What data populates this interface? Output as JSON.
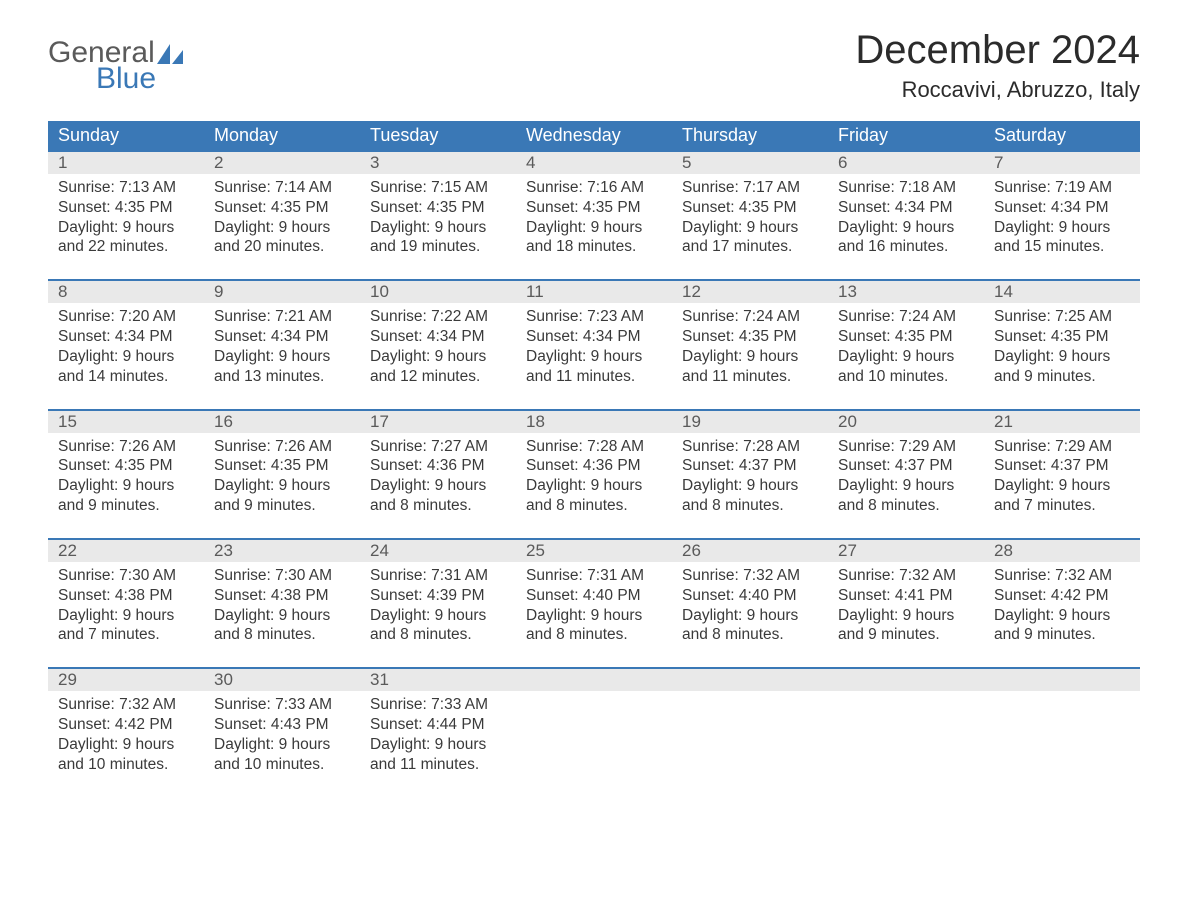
{
  "logo": {
    "word1": "General",
    "word2": "Blue",
    "word1_color": "#5a5a5a",
    "word2_color": "#3a78b6",
    "sail_color": "#3a78b6"
  },
  "title": "December 2024",
  "location": "Roccavivi, Abruzzo, Italy",
  "colors": {
    "header_bg": "#3a78b6",
    "header_text": "#ffffff",
    "daynum_bg": "#e9e9e9",
    "daynum_text": "#5a5a5a",
    "body_text": "#3a3a3a",
    "page_bg": "#ffffff",
    "week_border": "#3a78b6"
  },
  "weekdays": [
    "Sunday",
    "Monday",
    "Tuesday",
    "Wednesday",
    "Thursday",
    "Friday",
    "Saturday"
  ],
  "weeks": [
    [
      {
        "n": "1",
        "l1": "Sunrise: 7:13 AM",
        "l2": "Sunset: 4:35 PM",
        "l3": "Daylight: 9 hours",
        "l4": "and 22 minutes."
      },
      {
        "n": "2",
        "l1": "Sunrise: 7:14 AM",
        "l2": "Sunset: 4:35 PM",
        "l3": "Daylight: 9 hours",
        "l4": "and 20 minutes."
      },
      {
        "n": "3",
        "l1": "Sunrise: 7:15 AM",
        "l2": "Sunset: 4:35 PM",
        "l3": "Daylight: 9 hours",
        "l4": "and 19 minutes."
      },
      {
        "n": "4",
        "l1": "Sunrise: 7:16 AM",
        "l2": "Sunset: 4:35 PM",
        "l3": "Daylight: 9 hours",
        "l4": "and 18 minutes."
      },
      {
        "n": "5",
        "l1": "Sunrise: 7:17 AM",
        "l2": "Sunset: 4:35 PM",
        "l3": "Daylight: 9 hours",
        "l4": "and 17 minutes."
      },
      {
        "n": "6",
        "l1": "Sunrise: 7:18 AM",
        "l2": "Sunset: 4:34 PM",
        "l3": "Daylight: 9 hours",
        "l4": "and 16 minutes."
      },
      {
        "n": "7",
        "l1": "Sunrise: 7:19 AM",
        "l2": "Sunset: 4:34 PM",
        "l3": "Daylight: 9 hours",
        "l4": "and 15 minutes."
      }
    ],
    [
      {
        "n": "8",
        "l1": "Sunrise: 7:20 AM",
        "l2": "Sunset: 4:34 PM",
        "l3": "Daylight: 9 hours",
        "l4": "and 14 minutes."
      },
      {
        "n": "9",
        "l1": "Sunrise: 7:21 AM",
        "l2": "Sunset: 4:34 PM",
        "l3": "Daylight: 9 hours",
        "l4": "and 13 minutes."
      },
      {
        "n": "10",
        "l1": "Sunrise: 7:22 AM",
        "l2": "Sunset: 4:34 PM",
        "l3": "Daylight: 9 hours",
        "l4": "and 12 minutes."
      },
      {
        "n": "11",
        "l1": "Sunrise: 7:23 AM",
        "l2": "Sunset: 4:34 PM",
        "l3": "Daylight: 9 hours",
        "l4": "and 11 minutes."
      },
      {
        "n": "12",
        "l1": "Sunrise: 7:24 AM",
        "l2": "Sunset: 4:35 PM",
        "l3": "Daylight: 9 hours",
        "l4": "and 11 minutes."
      },
      {
        "n": "13",
        "l1": "Sunrise: 7:24 AM",
        "l2": "Sunset: 4:35 PM",
        "l3": "Daylight: 9 hours",
        "l4": "and 10 minutes."
      },
      {
        "n": "14",
        "l1": "Sunrise: 7:25 AM",
        "l2": "Sunset: 4:35 PM",
        "l3": "Daylight: 9 hours",
        "l4": "and 9 minutes."
      }
    ],
    [
      {
        "n": "15",
        "l1": "Sunrise: 7:26 AM",
        "l2": "Sunset: 4:35 PM",
        "l3": "Daylight: 9 hours",
        "l4": "and 9 minutes."
      },
      {
        "n": "16",
        "l1": "Sunrise: 7:26 AM",
        "l2": "Sunset: 4:35 PM",
        "l3": "Daylight: 9 hours",
        "l4": "and 9 minutes."
      },
      {
        "n": "17",
        "l1": "Sunrise: 7:27 AM",
        "l2": "Sunset: 4:36 PM",
        "l3": "Daylight: 9 hours",
        "l4": "and 8 minutes."
      },
      {
        "n": "18",
        "l1": "Sunrise: 7:28 AM",
        "l2": "Sunset: 4:36 PM",
        "l3": "Daylight: 9 hours",
        "l4": "and 8 minutes."
      },
      {
        "n": "19",
        "l1": "Sunrise: 7:28 AM",
        "l2": "Sunset: 4:37 PM",
        "l3": "Daylight: 9 hours",
        "l4": "and 8 minutes."
      },
      {
        "n": "20",
        "l1": "Sunrise: 7:29 AM",
        "l2": "Sunset: 4:37 PM",
        "l3": "Daylight: 9 hours",
        "l4": "and 8 minutes."
      },
      {
        "n": "21",
        "l1": "Sunrise: 7:29 AM",
        "l2": "Sunset: 4:37 PM",
        "l3": "Daylight: 9 hours",
        "l4": "and 7 minutes."
      }
    ],
    [
      {
        "n": "22",
        "l1": "Sunrise: 7:30 AM",
        "l2": "Sunset: 4:38 PM",
        "l3": "Daylight: 9 hours",
        "l4": "and 7 minutes."
      },
      {
        "n": "23",
        "l1": "Sunrise: 7:30 AM",
        "l2": "Sunset: 4:38 PM",
        "l3": "Daylight: 9 hours",
        "l4": "and 8 minutes."
      },
      {
        "n": "24",
        "l1": "Sunrise: 7:31 AM",
        "l2": "Sunset: 4:39 PM",
        "l3": "Daylight: 9 hours",
        "l4": "and 8 minutes."
      },
      {
        "n": "25",
        "l1": "Sunrise: 7:31 AM",
        "l2": "Sunset: 4:40 PM",
        "l3": "Daylight: 9 hours",
        "l4": "and 8 minutes."
      },
      {
        "n": "26",
        "l1": "Sunrise: 7:32 AM",
        "l2": "Sunset: 4:40 PM",
        "l3": "Daylight: 9 hours",
        "l4": "and 8 minutes."
      },
      {
        "n": "27",
        "l1": "Sunrise: 7:32 AM",
        "l2": "Sunset: 4:41 PM",
        "l3": "Daylight: 9 hours",
        "l4": "and 9 minutes."
      },
      {
        "n": "28",
        "l1": "Sunrise: 7:32 AM",
        "l2": "Sunset: 4:42 PM",
        "l3": "Daylight: 9 hours",
        "l4": "and 9 minutes."
      }
    ],
    [
      {
        "n": "29",
        "l1": "Sunrise: 7:32 AM",
        "l2": "Sunset: 4:42 PM",
        "l3": "Daylight: 9 hours",
        "l4": "and 10 minutes."
      },
      {
        "n": "30",
        "l1": "Sunrise: 7:33 AM",
        "l2": "Sunset: 4:43 PM",
        "l3": "Daylight: 9 hours",
        "l4": "and 10 minutes."
      },
      {
        "n": "31",
        "l1": "Sunrise: 7:33 AM",
        "l2": "Sunset: 4:44 PM",
        "l3": "Daylight: 9 hours",
        "l4": "and 11 minutes."
      },
      {
        "empty": true
      },
      {
        "empty": true
      },
      {
        "empty": true
      },
      {
        "empty": true
      }
    ]
  ]
}
